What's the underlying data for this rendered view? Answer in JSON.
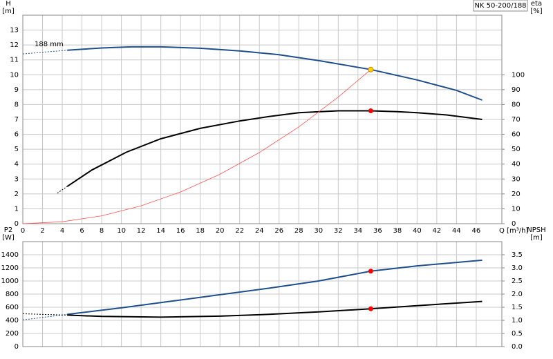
{
  "chart_data": [
    {
      "type": "line",
      "title": "NK 50-200/188",
      "xlabel": "Q [m³/h]",
      "ylabel": "H",
      "yunit": "[m]",
      "y2label": "eta",
      "y2unit": "[%]",
      "xlim": [
        0,
        48.6
      ],
      "xticks": [
        0,
        2,
        4,
        6,
        8,
        10,
        12,
        14,
        16,
        18,
        20,
        22,
        24,
        26,
        28,
        30,
        32,
        34,
        36,
        38,
        40,
        42,
        44,
        46
      ],
      "ylim": [
        0,
        14
      ],
      "yticks": [
        0,
        1,
        2,
        3,
        4,
        5,
        6,
        7,
        8,
        9,
        10,
        11,
        12,
        13
      ],
      "y2lim": [
        0,
        140
      ],
      "y2ticks": [
        0,
        10,
        20,
        30,
        40,
        50,
        60,
        70,
        80,
        90,
        100
      ],
      "grid": true,
      "annotations": [
        "188 mm"
      ],
      "series": [
        {
          "color": "#1f4e8c",
          "x": [
            4.5,
            8,
            11,
            14,
            18,
            22,
            26,
            30,
            35.3,
            40,
            44,
            46.6
          ],
          "values": [
            11.65,
            11.8,
            11.87,
            11.87,
            11.78,
            11.6,
            11.35,
            10.95,
            10.35,
            9.65,
            8.95,
            8.3
          ]
        },
        {
          "color": "#1f4e8c",
          "dashed": true,
          "x": [
            0,
            4.5
          ],
          "values": [
            11.4,
            11.65
          ]
        },
        {
          "color": "#000000",
          "axis": "y2",
          "x": [
            4.5,
            7,
            10.5,
            14,
            18,
            22,
            25,
            28,
            32,
            35.3,
            38,
            40,
            43,
            46.6
          ],
          "values": [
            25,
            36,
            48,
            57,
            64,
            69,
            72,
            74.5,
            75.8,
            75.8,
            75.2,
            74.5,
            73,
            70
          ]
        },
        {
          "color": "#000000",
          "axis": "y2",
          "dashed": true,
          "x": [
            3.5,
            4.5
          ],
          "values": [
            20.5,
            25
          ]
        },
        {
          "color": "#ff5050",
          "thin": true,
          "x": [
            0,
            4,
            8,
            12,
            16,
            20,
            24,
            28,
            32,
            35.3
          ],
          "values": [
            0,
            0.13,
            0.53,
            1.2,
            2.13,
            3.32,
            4.78,
            6.5,
            8.5,
            10.35
          ]
        }
      ],
      "points": [
        {
          "x": 35.3,
          "y": 10.35,
          "color": "#ffd700"
        },
        {
          "x": 35.3,
          "y": 75.8,
          "axis": "y2",
          "color": "#ff0000"
        }
      ]
    },
    {
      "type": "line",
      "ylabel": "P2",
      "yunit": "[W]",
      "y2label": "NPSH",
      "y2unit": "[m]",
      "xlim": [
        0,
        48.6
      ],
      "ylim": [
        0,
        1600
      ],
      "yticks": [
        0,
        200,
        400,
        600,
        800,
        1000,
        1200,
        1400
      ],
      "y2lim": [
        0,
        4
      ],
      "y2ticks": [
        {
          "value": 0,
          "label": "0.0"
        },
        0.5,
        {
          "value": 1,
          "label": "1.0"
        },
        1.5,
        {
          "value": 2,
          "label": "2.0"
        },
        2.5,
        {
          "value": 3,
          "label": "3.0"
        },
        3.5
      ],
      "grid": true,
      "series": [
        {
          "color": "#1f4e8c",
          "x": [
            4.5,
            10,
            15,
            20,
            25,
            30,
            35.3,
            40,
            46.6
          ],
          "values": [
            490,
            590,
            690,
            790,
            890,
            1000,
            1150,
            1230,
            1317
          ]
        },
        {
          "color": "#1f4e8c",
          "dashed": true,
          "x": [
            0,
            4.5
          ],
          "values": [
            407,
            490
          ]
        },
        {
          "color": "#000000",
          "axis": "y2",
          "x": [
            4.5,
            8,
            14,
            20,
            25,
            30,
            35.3,
            40,
            46.6
          ],
          "values": [
            1.2,
            1.15,
            1.12,
            1.16,
            1.23,
            1.32,
            1.44,
            1.56,
            1.72
          ]
        },
        {
          "color": "#000000",
          "axis": "y2",
          "dashed": true,
          "x": [
            0,
            4.5
          ],
          "values": [
            1.25,
            1.2
          ]
        }
      ],
      "points": [
        {
          "x": 35.3,
          "y": 1150,
          "color": "#ff0000"
        },
        {
          "x": 35.3,
          "y": 1.44,
          "axis": "y2",
          "color": "#ff0000"
        }
      ]
    }
  ]
}
